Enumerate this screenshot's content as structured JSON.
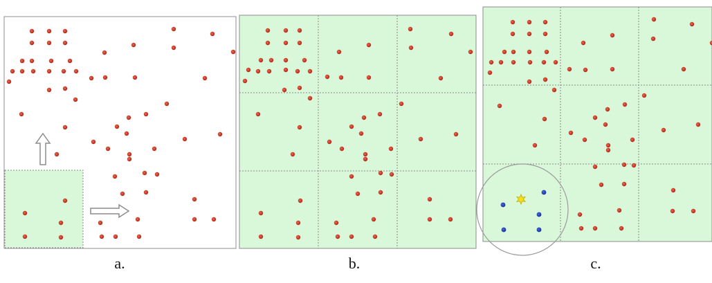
{
  "colors": {
    "panel_border": "#8c8c8c",
    "grid_fill": "#d9f7d9",
    "grid_line": "#8a8a8a",
    "red_point": "#c0281e",
    "blue_point": "#1f3fb0",
    "star": "#f2e21a",
    "circle": "#9a9a9a"
  },
  "panels": [
    {
      "caption": "a.",
      "arrows": [
        "up-arrow-icon",
        "right-arrow-icon"
      ],
      "points": [
        [
          46,
          45
        ],
        [
          71,
          45
        ],
        [
          94,
          45
        ],
        [
          46,
          62
        ],
        [
          71,
          62
        ],
        [
          94,
          62
        ],
        [
          32,
          88
        ],
        [
          46,
          88
        ],
        [
          74,
          88
        ],
        [
          101,
          88
        ],
        [
          18,
          103
        ],
        [
          32,
          103
        ],
        [
          48,
          103
        ],
        [
          71,
          103
        ],
        [
          92,
          103
        ],
        [
          110,
          103
        ],
        [
          13,
          118
        ],
        [
          132,
          113
        ],
        [
          152,
          112
        ],
        [
          195,
          112
        ],
        [
          71,
          130
        ],
        [
          94,
          128
        ],
        [
          109,
          144
        ],
        [
          31,
          165
        ],
        [
          94,
          184
        ],
        [
          82,
          223
        ],
        [
          135,
          205
        ],
        [
          156,
          215
        ],
        [
          169,
          183
        ],
        [
          186,
          170
        ],
        [
          183,
          193
        ],
        [
          211,
          165
        ],
        [
          241,
          150
        ],
        [
          251,
          42
        ],
        [
          307,
          49
        ],
        [
          337,
          75
        ],
        [
          151,
          76
        ],
        [
          193,
          65
        ],
        [
          251,
          69
        ],
        [
          296,
          113
        ],
        [
          318,
          194
        ],
        [
          267,
          201
        ],
        [
          223,
          215
        ],
        [
          187,
          230
        ],
        [
          166,
          255
        ],
        [
          187,
          223
        ],
        [
          209,
          250
        ],
        [
          227,
          252
        ],
        [
          177,
          280
        ],
        [
          211,
          278
        ],
        [
          199,
          317
        ],
        [
          201,
          342
        ],
        [
          167,
          342
        ],
        [
          147,
          342
        ],
        [
          145,
          322
        ],
        [
          281,
          288
        ],
        [
          281,
          317
        ],
        [
          309,
          317
        ],
        [
          36,
          308
        ],
        [
          36,
          342
        ],
        [
          88,
          322
        ],
        [
          88,
          343
        ],
        [
          94,
          290
        ]
      ]
    },
    {
      "caption": "b.",
      "points": [
        [
          387,
          44
        ],
        [
          413,
          44
        ],
        [
          433,
          44
        ],
        [
          387,
          62
        ],
        [
          413,
          62
        ],
        [
          433,
          62
        ],
        [
          377,
          87
        ],
        [
          392,
          87
        ],
        [
          413,
          87
        ],
        [
          440,
          87
        ],
        [
          359,
          101
        ],
        [
          373,
          103
        ],
        [
          389,
          103
        ],
        [
          413,
          101
        ],
        [
          430,
          103
        ],
        [
          448,
          103
        ],
        [
          354,
          117
        ],
        [
          473,
          111
        ],
        [
          493,
          112
        ],
        [
          533,
          112
        ],
        [
          411,
          130
        ],
        [
          433,
          127
        ],
        [
          448,
          142
        ],
        [
          373,
          165
        ],
        [
          433,
          184
        ],
        [
          423,
          223
        ],
        [
          476,
          205
        ],
        [
          494,
          215
        ],
        [
          508,
          183
        ],
        [
          526,
          170
        ],
        [
          522,
          193
        ],
        [
          549,
          165
        ],
        [
          580,
          150
        ],
        [
          593,
          42
        ],
        [
          652,
          49
        ],
        [
          680,
          75
        ],
        [
          490,
          75
        ],
        [
          533,
          65
        ],
        [
          594,
          69
        ],
        [
          637,
          113
        ],
        [
          659,
          194
        ],
        [
          608,
          201
        ],
        [
          565,
          215
        ],
        [
          528,
          230
        ],
        [
          508,
          255
        ],
        [
          528,
          223
        ],
        [
          550,
          250
        ],
        [
          566,
          252
        ],
        [
          517,
          280
        ],
        [
          550,
          278
        ],
        [
          540,
          317
        ],
        [
          542,
          342
        ],
        [
          508,
          342
        ],
        [
          488,
          342
        ],
        [
          486,
          322
        ],
        [
          621,
          288
        ],
        [
          621,
          317
        ],
        [
          651,
          317
        ],
        [
          377,
          308
        ],
        [
          377,
          342
        ],
        [
          431,
          322
        ],
        [
          431,
          343
        ],
        [
          434,
          290
        ]
      ]
    },
    {
      "caption": "c.",
      "points": [
        [
          741,
          32
        ],
        [
          765,
          32
        ],
        [
          788,
          32
        ],
        [
          741,
          49
        ],
        [
          765,
          49
        ],
        [
          788,
          49
        ],
        [
          729,
          75
        ],
        [
          742,
          75
        ],
        [
          765,
          75
        ],
        [
          790,
          75
        ],
        [
          710,
          90
        ],
        [
          724,
          90
        ],
        [
          742,
          90
        ],
        [
          766,
          90
        ],
        [
          786,
          90
        ],
        [
          803,
          90
        ],
        [
          708,
          105
        ],
        [
          823,
          100
        ],
        [
          846,
          101
        ],
        [
          885,
          100
        ],
        [
          765,
          118
        ],
        [
          788,
          115
        ],
        [
          801,
          130
        ],
        [
          722,
          153
        ],
        [
          787,
          172
        ],
        [
          773,
          210
        ],
        [
          825,
          192
        ],
        [
          845,
          202
        ],
        [
          860,
          170
        ],
        [
          878,
          158
        ],
        [
          875,
          180
        ],
        [
          903,
          151
        ],
        [
          931,
          138
        ],
        [
          945,
          28
        ],
        [
          1000,
          35
        ],
        [
          1029,
          62
        ],
        [
          843,
          62
        ],
        [
          885,
          51
        ],
        [
          944,
          56
        ],
        [
          988,
          100
        ],
        [
          1009,
          180
        ],
        [
          959,
          188
        ],
        [
          914,
          202
        ],
        [
          879,
          217
        ],
        [
          860,
          241
        ],
        [
          879,
          210
        ],
        [
          902,
          238
        ],
        [
          916,
          239
        ],
        [
          869,
          267
        ],
        [
          902,
          266
        ],
        [
          895,
          304
        ],
        [
          898,
          330
        ],
        [
          860,
          330
        ],
        [
          840,
          330
        ],
        [
          838,
          310
        ],
        [
          973,
          275
        ],
        [
          972,
          305
        ],
        [
          1002,
          305
        ]
      ],
      "blue_points": [
        [
          786,
          278
        ],
        [
          727,
          296
        ],
        [
          779,
          310
        ],
        [
          728,
          332
        ],
        [
          779,
          332
        ]
      ],
      "star": [
        753,
        288
      ],
      "circle": {
        "cx": 755,
        "cy": 303,
        "r": 66
      }
    }
  ]
}
